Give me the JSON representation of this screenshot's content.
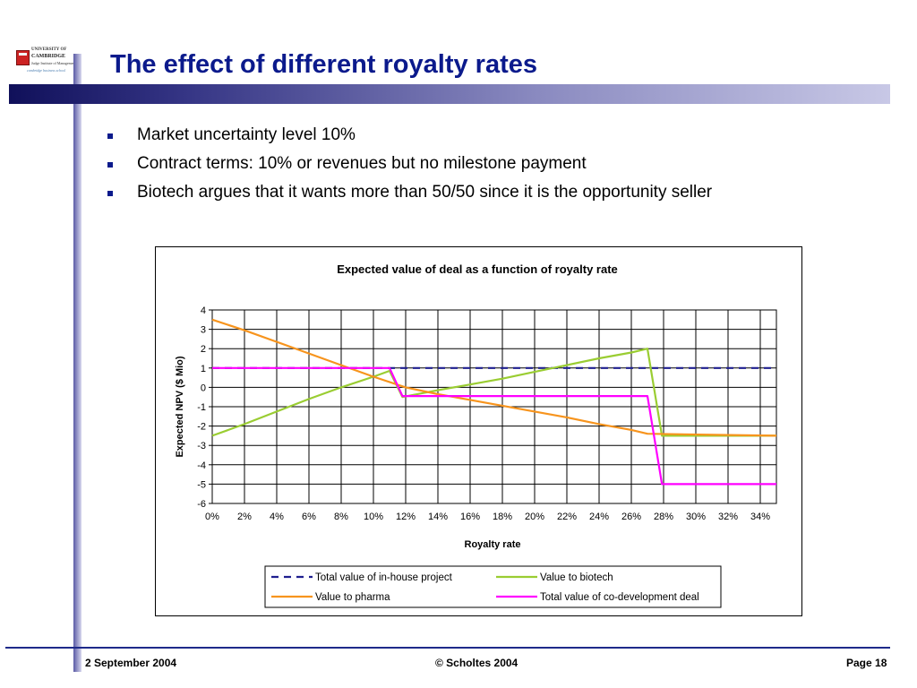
{
  "logo": {
    "line1": "UNIVERSITY OF",
    "line2": "CAMBRIDGE",
    "line3": "Judge Institute of Management",
    "line4": "cambridge business school"
  },
  "slide": {
    "title": "The effect of different royalty rates",
    "bullets": [
      "Market uncertainty level 10%",
      "Contract terms: 10% or revenues but no milestone payment",
      "Biotech argues that it wants more than 50/50 since it is the opportunity seller"
    ]
  },
  "footer": {
    "date": "2 September 2004",
    "copyright": "© Scholtes 2004",
    "page": "Page 18"
  },
  "chart_data": {
    "type": "line",
    "title": "Expected value of deal as a function of royalty rate",
    "xlabel": "Royalty rate",
    "ylabel": "Expected NPV ($ Mio)",
    "xlim": [
      0,
      35
    ],
    "ylim": [
      -6,
      4
    ],
    "x_ticks": [
      0,
      2,
      4,
      6,
      8,
      10,
      12,
      14,
      16,
      18,
      20,
      22,
      24,
      26,
      28,
      30,
      32,
      34
    ],
    "x_tick_labels": [
      "0%",
      "2%",
      "4%",
      "6%",
      "8%",
      "10%",
      "12%",
      "14%",
      "16%",
      "18%",
      "20%",
      "22%",
      "24%",
      "26%",
      "28%",
      "30%",
      "32%",
      "34%"
    ],
    "y_ticks": [
      4,
      3,
      2,
      1,
      0,
      -1,
      -2,
      -3,
      -4,
      -5,
      -6
    ],
    "y_tick_labels": [
      "4",
      "3",
      "2",
      "1",
      "0",
      "-1",
      "-2",
      "-3",
      "-4",
      "-5",
      "-6"
    ],
    "grid": true,
    "legend_position": "bottom",
    "series": [
      {
        "name": "Total value of in-house project",
        "color": "#1f1f8f",
        "dash": true,
        "x": [
          0,
          35
        ],
        "y": [
          1,
          1
        ]
      },
      {
        "name": "Value to biotech",
        "color": "#9acd32",
        "dash": false,
        "x": [
          0,
          2,
          4,
          6,
          8,
          10,
          11,
          11.8,
          14,
          16,
          18,
          20,
          22,
          24,
          26,
          27,
          27.9,
          35
        ],
        "y": [
          -2.5,
          -1.9,
          -1.25,
          -0.6,
          0,
          0.55,
          0.85,
          -0.5,
          -0.15,
          0.15,
          0.45,
          0.8,
          1.15,
          1.5,
          1.8,
          2.0,
          -2.5,
          -2.5
        ]
      },
      {
        "name": "Value to pharma",
        "color": "#f7941d",
        "dash": false,
        "x": [
          0,
          2,
          4,
          6,
          8,
          10,
          12,
          14,
          16,
          18,
          20,
          22,
          24,
          26,
          27,
          35
        ],
        "y": [
          3.5,
          2.95,
          2.35,
          1.75,
          1.15,
          0.55,
          0.0,
          -0.35,
          -0.65,
          -0.95,
          -1.25,
          -1.55,
          -1.9,
          -2.2,
          -2.4,
          -2.5
        ]
      },
      {
        "name": "Total value of co-development deal",
        "color": "#ff00ff",
        "dash": false,
        "x": [
          0,
          11,
          11.8,
          27,
          27.9,
          35
        ],
        "y": [
          1,
          1,
          -0.45,
          -0.45,
          -5,
          -5
        ]
      }
    ]
  }
}
